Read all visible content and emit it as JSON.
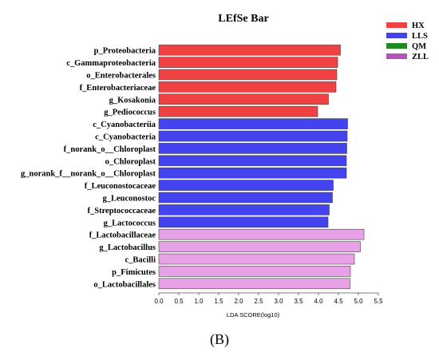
{
  "chart_data": {
    "type": "bar",
    "orientation": "horizontal",
    "title": "LEfSe Bar",
    "xlabel": "LDA SCORE(log10)",
    "ylabel": "",
    "xlim": [
      0,
      5.5
    ],
    "xticks": [
      "0.0",
      "0.5",
      "1.0",
      "1.5",
      "2.0",
      "2.5",
      "3.0",
      "3.5",
      "4.0",
      "4.5",
      "5.0",
      "5.5"
    ],
    "grid": false,
    "legend_position": "top-right",
    "legend": [
      {
        "name": "HX",
        "color": "#f04242"
      },
      {
        "name": "LLS",
        "color": "#4343f0"
      },
      {
        "name": "QM",
        "color": "#1f8a1f"
      },
      {
        "name": "ZLL",
        "color": "#b455b4"
      }
    ],
    "bars": [
      {
        "label": "p_Proteobacteria",
        "value": 4.55,
        "group": "HX",
        "color": "#f04242"
      },
      {
        "label": "c_Gammaproteobacteria",
        "value": 4.48,
        "group": "HX",
        "color": "#f04242"
      },
      {
        "label": "o_Enterobacterales",
        "value": 4.46,
        "group": "HX",
        "color": "#f04242"
      },
      {
        "label": "f_Enterobacteriaceae",
        "value": 4.44,
        "group": "HX",
        "color": "#f04242"
      },
      {
        "label": "g_Kosakonia",
        "value": 4.25,
        "group": "HX",
        "color": "#f04242"
      },
      {
        "label": "g_Pediococcus",
        "value": 3.98,
        "group": "HX",
        "color": "#f04242"
      },
      {
        "label": "c_Cyanobacteriia",
        "value": 4.73,
        "group": "LLS",
        "color": "#4343f0"
      },
      {
        "label": "c_Cyanobacteria",
        "value": 4.72,
        "group": "LLS",
        "color": "#4343f0"
      },
      {
        "label": "f_norank_o__Chloroplast",
        "value": 4.71,
        "group": "LLS",
        "color": "#4343f0"
      },
      {
        "label": "o_Chloroplast",
        "value": 4.7,
        "group": "LLS",
        "color": "#4343f0"
      },
      {
        "label": "g_norank_f__norank_o__Chloroplast",
        "value": 4.7,
        "group": "LLS",
        "color": "#4343f0"
      },
      {
        "label": "f_Leuconostocaceae",
        "value": 4.37,
        "group": "LLS",
        "color": "#4343f0"
      },
      {
        "label": "g_Leuconostoc",
        "value": 4.35,
        "group": "LLS",
        "color": "#4343f0"
      },
      {
        "label": "f_Streptococcaceae",
        "value": 4.27,
        "group": "LLS",
        "color": "#4343f0"
      },
      {
        "label": "g_Lactococcus",
        "value": 4.24,
        "group": "LLS",
        "color": "#4343f0"
      },
      {
        "label": "f_Lactobacillaceae",
        "value": 5.14,
        "group": "ZLL",
        "color": "#e7a1e7"
      },
      {
        "label": "g_Lactobacillus",
        "value": 5.05,
        "group": "ZLL",
        "color": "#e7a1e7"
      },
      {
        "label": "c_Bacilli",
        "value": 4.9,
        "group": "ZLL",
        "color": "#e7a1e7"
      },
      {
        "label": "p_Fimicutes",
        "value": 4.8,
        "group": "ZLL",
        "color": "#e7a1e7"
      },
      {
        "label": "o_Lactobacillales",
        "value": 4.79,
        "group": "ZLL",
        "color": "#e7a1e7"
      }
    ]
  },
  "figure_label": "(B)"
}
